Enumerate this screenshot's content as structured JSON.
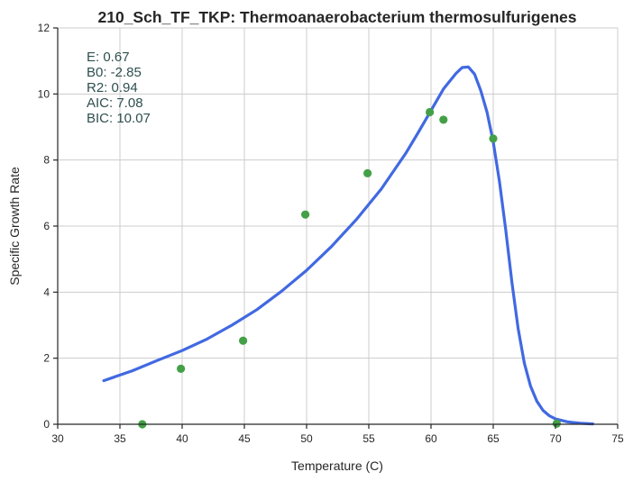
{
  "chart_data": {
    "type": "scatter",
    "title": "210_Sch_TF_TKP: Thermoanaerobacterium thermosulfurigenes",
    "xlabel": "Temperature (C)",
    "ylabel": "Specific Growth Rate",
    "xlim": [
      30,
      75
    ],
    "ylim": [
      0,
      12
    ],
    "xticks": [
      30,
      35,
      40,
      45,
      50,
      55,
      60,
      65,
      70,
      75
    ],
    "yticks": [
      0,
      2,
      4,
      6,
      8,
      10,
      12
    ],
    "grid": true,
    "annotation_lines": [
      "E:  0.67",
      "B0:  -2.85",
      "R2:  0.94",
      "AIC: 7.08",
      "BIC: 10.07"
    ],
    "series": [
      {
        "kind": "points",
        "color": "#43a047",
        "x": [
          36.8,
          39.9,
          44.9,
          49.9,
          54.9,
          59.9,
          61.0,
          65.0,
          70.1
        ],
        "y": [
          0.0,
          1.68,
          2.53,
          6.35,
          7.6,
          9.45,
          9.22,
          8.65,
          0.02
        ]
      },
      {
        "kind": "line",
        "color": "#4169e1",
        "x": [
          33.7,
          36,
          38,
          40,
          42,
          44,
          46,
          48,
          50,
          52,
          54,
          56,
          58,
          59,
          60,
          61,
          62,
          62.5,
          63,
          63.5,
          64,
          64.5,
          65,
          65.5,
          66,
          66.5,
          67,
          67.5,
          68,
          68.5,
          69,
          69.5,
          70,
          71,
          72,
          73
        ],
        "y": [
          1.32,
          1.62,
          1.93,
          2.23,
          2.58,
          3.0,
          3.47,
          4.03,
          4.66,
          5.38,
          6.2,
          7.12,
          8.22,
          8.85,
          9.5,
          10.15,
          10.62,
          10.8,
          10.82,
          10.6,
          10.1,
          9.45,
          8.55,
          7.35,
          5.9,
          4.3,
          2.9,
          1.85,
          1.15,
          0.7,
          0.42,
          0.26,
          0.16,
          0.07,
          0.03,
          0.01
        ]
      }
    ]
  }
}
